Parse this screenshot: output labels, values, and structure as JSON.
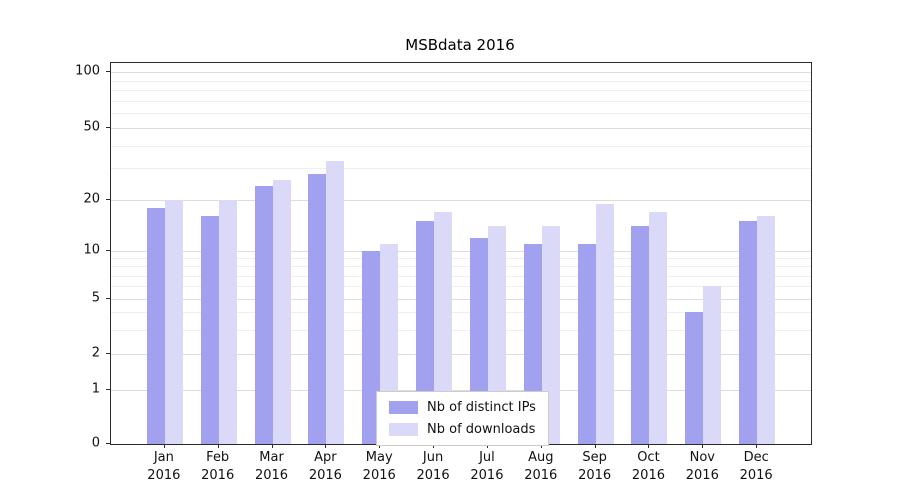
{
  "chart_data": {
    "type": "bar",
    "title": "MSBdata 2016",
    "categories": [
      "Jan",
      "Feb",
      "Mar",
      "Apr",
      "May",
      "Jun",
      "Jul",
      "Aug",
      "Sep",
      "Oct",
      "Nov",
      "Dec"
    ],
    "year_label": "2016",
    "series": [
      {
        "name": "Nb of distinct IPs",
        "color": "#a1a1ef",
        "values": [
          18,
          16,
          24,
          28,
          10,
          15,
          12,
          11,
          11,
          14,
          4,
          15
        ]
      },
      {
        "name": "Nb of downloads",
        "color": "#dadaf8",
        "values": [
          20,
          20,
          26,
          33,
          11,
          17,
          14,
          14,
          19,
          17,
          6,
          16
        ]
      }
    ],
    "yticks": [
      0,
      1,
      2,
      5,
      10,
      20,
      50,
      100
    ],
    "yticks_minor": [
      3,
      4,
      6,
      7,
      8,
      9,
      30,
      40,
      60,
      70,
      80,
      90
    ],
    "yscale": "log-like",
    "ylim": [
      0,
      110
    ],
    "xlabel": "",
    "ylabel": "",
    "grid": "horizontal",
    "legend_position": "lower center"
  }
}
